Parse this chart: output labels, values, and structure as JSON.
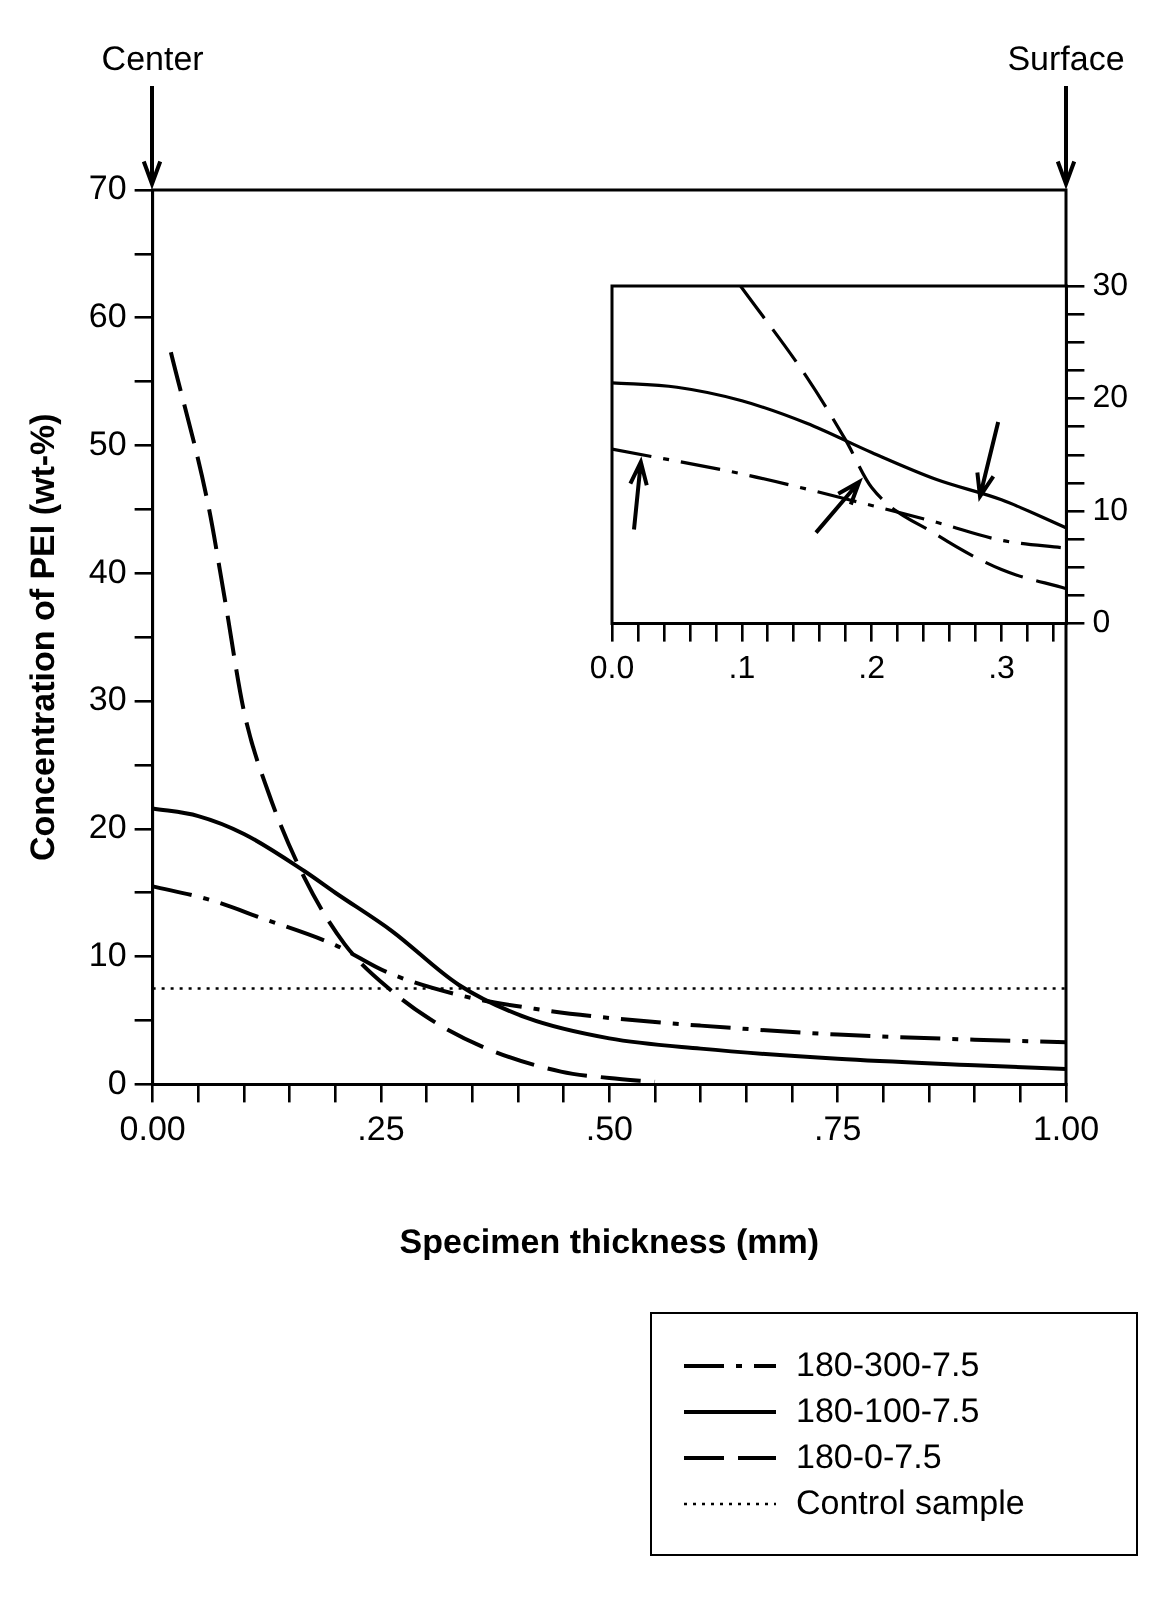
{
  "chart_data": [
    {
      "type": "line",
      "xlabel": "Specimen thickness (mm)",
      "ylabel": "Concentration of PEI (wt-%)",
      "xlim": [
        0,
        1
      ],
      "ylim": [
        0,
        70
      ],
      "xticks": [
        {
          "value": 0,
          "label": "0.00"
        },
        {
          "value": 0.05,
          "label": null
        },
        {
          "value": 0.1,
          "label": null
        },
        {
          "value": 0.15,
          "label": null
        },
        {
          "value": 0.2,
          "label": null
        },
        {
          "value": 0.25,
          "label": ".25"
        },
        {
          "value": 0.3,
          "label": null
        },
        {
          "value": 0.35,
          "label": null
        },
        {
          "value": 0.4,
          "label": null
        },
        {
          "value": 0.45,
          "label": null
        },
        {
          "value": 0.5,
          "label": ".50"
        },
        {
          "value": 0.55,
          "label": null
        },
        {
          "value": 0.6,
          "label": null
        },
        {
          "value": 0.65,
          "label": null
        },
        {
          "value": 0.7,
          "label": null
        },
        {
          "value": 0.75,
          "label": ".75"
        },
        {
          "value": 0.8,
          "label": null
        },
        {
          "value": 0.85,
          "label": null
        },
        {
          "value": 0.9,
          "label": null
        },
        {
          "value": 0.95,
          "label": null
        },
        {
          "value": 1,
          "label": "1.00"
        }
      ],
      "yticks": [
        0,
        {
          "value": 5,
          "label": null
        },
        10,
        {
          "value": 15,
          "label": null
        },
        20,
        {
          "value": 25,
          "label": null
        },
        30,
        {
          "value": 35,
          "label": null
        },
        40,
        {
          "value": 45,
          "label": null
        },
        50,
        {
          "value": 55,
          "label": null
        },
        60,
        {
          "value": 65,
          "label": null
        },
        70
      ],
      "grid": false,
      "legend": "bottom right",
      "marker": "none",
      "annotations": [
        "Center",
        "Surface"
      ],
      "series": [
        {
          "name": "180-300-7.5",
          "color": "#000000",
          "line_style": "dashdot",
          "x": [
            0,
            0.06,
            0.12,
            0.2,
            0.256,
            0.335,
            0.42,
            0.5,
            0.6,
            0.75,
            0.9,
            1
          ],
          "values": [
            15.5,
            14.5,
            13,
            10.9,
            8.8,
            7,
            5.9,
            5.2,
            4.6,
            3.9,
            3.5,
            3.3
          ]
        },
        {
          "name": "180-100-7.5",
          "color": "#000000",
          "line_style": "solid",
          "x": [
            0,
            0.05,
            0.1,
            0.166,
            0.2,
            0.262,
            0.335,
            0.41,
            0.5,
            0.6,
            0.75,
            0.9,
            1
          ],
          "values": [
            21.6,
            21,
            19.6,
            16.7,
            15,
            12,
            7.8,
            5.2,
            3.6,
            2.8,
            2,
            1.5,
            1.2
          ]
        },
        {
          "name": "180-0-7.5",
          "color": "#000000",
          "line_style": "dashed",
          "x": [
            0.02,
            0.061,
            0.079,
            0.1,
            0.126,
            0.166,
            0.21,
            0.262,
            0.313,
            0.373,
            0.447,
            0.5,
            0.55
          ],
          "values": [
            57.3,
            45.3,
            38,
            29.2,
            23,
            16.2,
            11,
            7.3,
            4.7,
            2.6,
            1,
            0.5,
            0.2
          ]
        },
        {
          "name": "Control sample",
          "color": "#000000",
          "line_style": "dotted",
          "x": [
            0,
            1
          ],
          "values": [
            7.5,
            7.5
          ]
        }
      ]
    },
    {
      "type": "line",
      "xlim": [
        0,
        0.35
      ],
      "ylim": [
        0,
        30
      ],
      "xticks": [
        {
          "value": 0,
          "label": "0.0"
        },
        {
          "value": 0.02,
          "label": null
        },
        {
          "value": 0.04,
          "label": null
        },
        {
          "value": 0.06,
          "label": null
        },
        {
          "value": 0.08,
          "label": null
        },
        {
          "value": 0.1,
          "label": ".1"
        },
        {
          "value": 0.12,
          "label": null
        },
        {
          "value": 0.14,
          "label": null
        },
        {
          "value": 0.16,
          "label": null
        },
        {
          "value": 0.18,
          "label": null
        },
        {
          "value": 0.2,
          "label": ".2"
        },
        {
          "value": 0.22,
          "label": null
        },
        {
          "value": 0.24,
          "label": null
        },
        {
          "value": 0.26,
          "label": null
        },
        {
          "value": 0.28,
          "label": null
        },
        {
          "value": 0.3,
          "label": ".3"
        },
        {
          "value": 0.32,
          "label": null
        },
        {
          "value": 0.34,
          "label": null
        }
      ],
      "yticks": [
        0,
        {
          "value": 2.5,
          "label": null
        },
        {
          "value": 5,
          "label": null
        },
        {
          "value": 7.5,
          "label": null
        },
        10,
        {
          "value": 12.5,
          "label": null
        },
        {
          "value": 15,
          "label": null
        },
        {
          "value": 17.5,
          "label": null
        },
        20,
        {
          "value": 22.5,
          "label": null
        },
        {
          "value": 25,
          "label": null
        },
        {
          "value": 27.5,
          "label": null
        },
        30
      ],
      "grid": false,
      "legend": false,
      "marker": "none",
      "series": [
        {
          "color": "#000000",
          "line_style": "solid",
          "x": [
            0,
            0.05,
            0.1,
            0.15,
            0.2,
            0.25,
            0.3,
            0.35
          ],
          "values": [
            21.4,
            21,
            19.8,
            17.8,
            15.2,
            12.8,
            11,
            8.5
          ]
        },
        {
          "color": "#000000",
          "line_style": "dashdot",
          "x": [
            0,
            0.1,
            0.2,
            0.25,
            0.3,
            0.35
          ],
          "values": [
            15.5,
            13.3,
            10.5,
            9,
            7.4,
            6.7
          ]
        },
        {
          "color": "#000000",
          "line_style": "dashed",
          "x": [
            0.099,
            0.15,
            0.18,
            0.2,
            0.25,
            0.3,
            0.35
          ],
          "values": [
            30,
            21.9,
            16.3,
            12.1,
            7.9,
            4.8,
            3.1
          ]
        }
      ]
    }
  ]
}
